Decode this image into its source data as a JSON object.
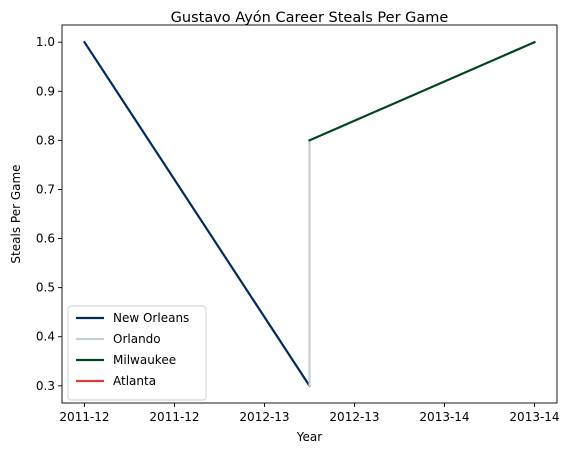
{
  "chart_data": {
    "type": "line",
    "title": "Gustavo Ayón Career Steals Per Game",
    "xlabel": "Year",
    "ylabel": "Steals Per Game",
    "x_tick_labels": [
      "2011-12",
      "2011-12",
      "2012-13",
      "2012-13",
      "2013-14",
      "2013-14"
    ],
    "y_ticks": [
      0.3,
      0.4,
      0.5,
      0.6,
      0.7,
      0.8,
      0.9,
      1.0
    ],
    "y_tick_labels": [
      "0.3",
      "0.4",
      "0.5",
      "0.6",
      "0.7",
      "0.8",
      "0.9",
      "1.0"
    ],
    "ylim": [
      0.265,
      1.035
    ],
    "grid": false,
    "legend_position": "lower-left",
    "series": [
      {
        "name": "New Orleans",
        "color": "#002B5C",
        "points": [
          [
            0,
            1.0
          ],
          [
            2.5,
            0.3
          ]
        ]
      },
      {
        "name": "Orlando",
        "color": "#C4CED4",
        "points": [
          [
            2.5,
            0.3
          ],
          [
            2.5,
            0.8
          ]
        ]
      },
      {
        "name": "Milwaukee",
        "color": "#00471B",
        "points": [
          [
            2.5,
            0.8
          ],
          [
            5,
            1.0
          ]
        ]
      },
      {
        "name": "Atlanta",
        "color": "#E03A3E",
        "points": []
      }
    ]
  }
}
